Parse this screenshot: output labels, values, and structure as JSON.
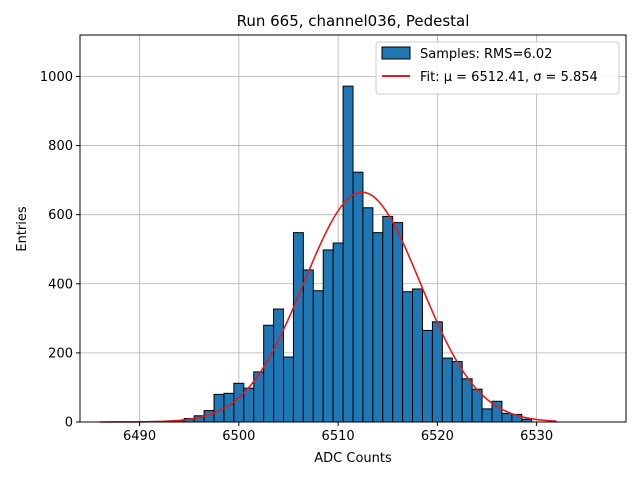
{
  "chart_data": {
    "type": "bar",
    "title": "Run 665, channel036, Pedestal",
    "xlabel": "ADC Counts",
    "ylabel": "Entries",
    "xlim": [
      6484,
      6539
    ],
    "ylim": [
      0,
      1120
    ],
    "xticks": [
      6490,
      6500,
      6510,
      6520,
      6530
    ],
    "yticks": [
      0,
      200,
      400,
      600,
      800,
      1000
    ],
    "grid": true,
    "legend_position": "top-right",
    "colors": {
      "bars": "#1f77b4",
      "bar_edge": "#000000",
      "fit": "#e41a1c",
      "grid": "#b0b0b0"
    },
    "histogram": {
      "name": "Samples: RMS=6.02",
      "bin_width": 1,
      "bins": [
        {
          "x": 6494,
          "count": 4
        },
        {
          "x": 6495,
          "count": 10
        },
        {
          "x": 6496,
          "count": 18
        },
        {
          "x": 6497,
          "count": 33
        },
        {
          "x": 6498,
          "count": 80
        },
        {
          "x": 6499,
          "count": 83
        },
        {
          "x": 6500,
          "count": 112
        },
        {
          "x": 6501,
          "count": 98
        },
        {
          "x": 6502,
          "count": 145
        },
        {
          "x": 6503,
          "count": 280
        },
        {
          "x": 6504,
          "count": 327
        },
        {
          "x": 6505,
          "count": 188
        },
        {
          "x": 6506,
          "count": 548
        },
        {
          "x": 6507,
          "count": 440
        },
        {
          "x": 6508,
          "count": 380
        },
        {
          "x": 6509,
          "count": 498
        },
        {
          "x": 6510,
          "count": 518
        },
        {
          "x": 6511,
          "count": 972
        },
        {
          "x": 6512,
          "count": 723
        },
        {
          "x": 6513,
          "count": 620
        },
        {
          "x": 6514,
          "count": 548
        },
        {
          "x": 6515,
          "count": 595
        },
        {
          "x": 6516,
          "count": 577
        },
        {
          "x": 6517,
          "count": 377
        },
        {
          "x": 6518,
          "count": 385
        },
        {
          "x": 6519,
          "count": 265
        },
        {
          "x": 6520,
          "count": 290
        },
        {
          "x": 6521,
          "count": 185
        },
        {
          "x": 6522,
          "count": 175
        },
        {
          "x": 6523,
          "count": 125
        },
        {
          "x": 6524,
          "count": 95
        },
        {
          "x": 6525,
          "count": 38
        },
        {
          "x": 6526,
          "count": 60
        },
        {
          "x": 6527,
          "count": 25
        },
        {
          "x": 6528,
          "count": 22
        },
        {
          "x": 6529,
          "count": 8
        }
      ]
    },
    "fit": {
      "name": "Fit: μ = 6512.41, σ = 5.854",
      "mu": 6512.41,
      "sigma": 5.854,
      "amplitude": 665,
      "x_range": [
        6486,
        6532
      ]
    }
  }
}
